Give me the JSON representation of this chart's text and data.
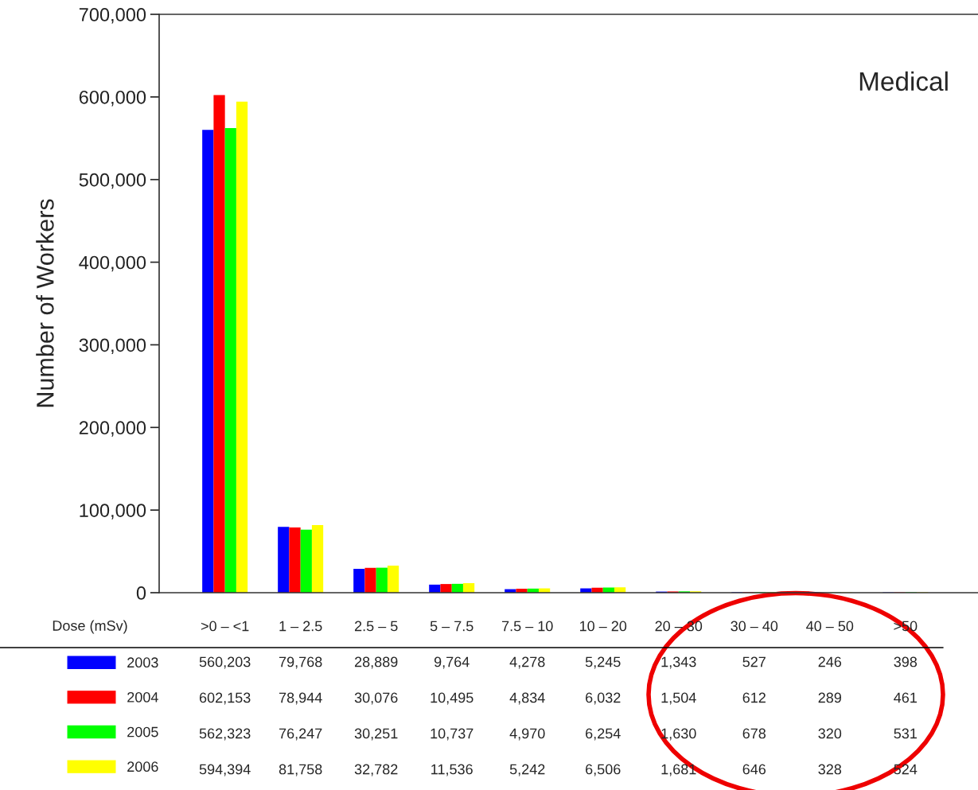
{
  "chart_data": {
    "type": "bar",
    "title": "Medical",
    "xlabel": "Dose (mSv)",
    "ylabel": "Number of Workers",
    "categories": [
      ">0 – <1",
      "1 – 2.5",
      "2.5 – 5",
      "5 – 7.5",
      "7.5 – 10",
      "10 – 20",
      "20 – 30",
      "30 – 40",
      "40 – 50",
      ">50"
    ],
    "series": [
      {
        "name": "2003",
        "color": "#0000ff",
        "values": [
          560203,
          79768,
          28889,
          9764,
          4278,
          5245,
          1343,
          527,
          246,
          398
        ],
        "value_labels": [
          "560,203",
          "79,768",
          "28,889",
          "9,764",
          "4,278",
          "5,245",
          "1,343",
          "527",
          "246",
          "398"
        ]
      },
      {
        "name": "2004",
        "color": "#ff0000",
        "values": [
          602153,
          78944,
          30076,
          10495,
          4834,
          6032,
          1504,
          612,
          289,
          461
        ],
        "value_labels": [
          "602,153",
          "78,944",
          "30,076",
          "10,495",
          "4,834",
          "6,032",
          "1,504",
          "612",
          "289",
          "461"
        ]
      },
      {
        "name": "2005",
        "color": "#00ff00",
        "values": [
          562323,
          76247,
          30251,
          10737,
          4970,
          6254,
          1630,
          678,
          320,
          531
        ],
        "value_labels": [
          "562,323",
          "76,247",
          "30,251",
          "10,737",
          "4,970",
          "6,254",
          "1,630",
          "678",
          "320",
          "531"
        ]
      },
      {
        "name": "2006",
        "color": "#ffff00",
        "values": [
          594394,
          81758,
          32782,
          11536,
          5242,
          6506,
          1681,
          646,
          328,
          524
        ],
        "value_labels": [
          "594,394",
          "81,758",
          "32,782",
          "11,536",
          "5,242",
          "6,506",
          "1,681",
          "646",
          "328",
          "524"
        ]
      }
    ],
    "ylim": [
      0,
      700000
    ],
    "yticks": [
      0,
      {
        "value": 100000,
        "label": "100,000"
      },
      {
        "value": 200000,
        "label": "200,000"
      },
      {
        "value": 300000,
        "label": "300,000"
      },
      {
        "value": 400000,
        "label": "400,000"
      },
      {
        "value": 500000,
        "label": "500,000"
      },
      {
        "value": 600000,
        "label": "600,000"
      },
      {
        "value": 700000,
        "label": "700,000"
      }
    ],
    "legend": "bottom",
    "grid": false
  }
}
